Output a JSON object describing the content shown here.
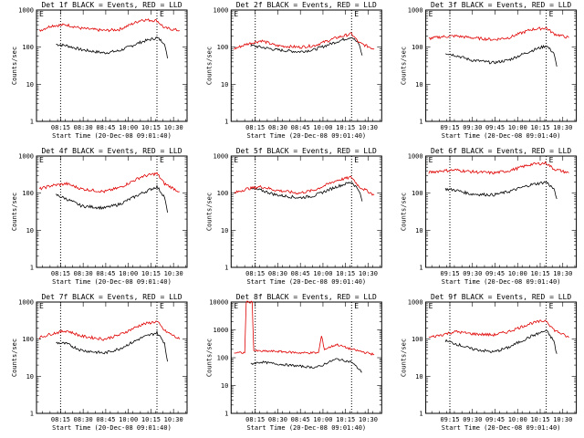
{
  "chart_data": {
    "type": "line",
    "panels": [
      {
        "title": "Det 1f BLACK = Events, RED = LLD",
        "xticks": [
          "08:15",
          "08:30",
          "08:45",
          "10:00",
          "10:15",
          "10:30"
        ],
        "xlabel": "Start Time (20-Dec-08 09:01:40)",
        "ylabel": "Counts/sec",
        "yticks": [
          "1",
          "10",
          "100",
          "1000"
        ],
        "ylim": [
          1,
          1000
        ],
        "log_y": true,
        "markers": [
          "E",
          "E"
        ],
        "series": [
          {
            "color": "#000000",
            "x": [
              0.13,
              0.2,
              0.3,
              0.45,
              0.55,
              0.7,
              0.8,
              0.85,
              0.87
            ],
            "y": [
              120,
              110,
              85,
              70,
              80,
              140,
              180,
              130,
              50
            ]
          },
          {
            "color": "#e00000",
            "x": [
              0.02,
              0.1,
              0.2,
              0.3,
              0.45,
              0.55,
              0.7,
              0.8,
              0.85,
              0.95
            ],
            "y": [
              280,
              380,
              400,
              320,
              280,
              300,
              550,
              520,
              330,
              280
            ]
          }
        ]
      },
      {
        "title": "Det 2f BLACK = Events, RED = LLD",
        "xticks": [
          "08:15",
          "08:30",
          "08:45",
          "10:00",
          "10:15",
          "10:30"
        ],
        "xlabel": "Start Time (20-Dec-08 09:01:40)",
        "ylabel": "Counts/sec",
        "yticks": [
          "1",
          "10",
          "100",
          "1000"
        ],
        "ylim": [
          1,
          1000
        ],
        "log_y": true,
        "markers": [
          "E",
          "E"
        ],
        "series": [
          {
            "color": "#000000",
            "x": [
              0.13,
              0.2,
              0.3,
              0.45,
              0.55,
              0.7,
              0.8,
              0.85,
              0.87
            ],
            "y": [
              110,
              100,
              85,
              75,
              85,
              140,
              190,
              120,
              60
            ]
          },
          {
            "color": "#e00000",
            "x": [
              0.02,
              0.1,
              0.2,
              0.3,
              0.45,
              0.55,
              0.7,
              0.8,
              0.85,
              0.95
            ],
            "y": [
              90,
              120,
              150,
              110,
              100,
              110,
              180,
              230,
              130,
              90
            ]
          }
        ]
      },
      {
        "title": "Det 3f BLACK = Events, RED = LLD",
        "xticks": [
          "09:15",
          "09:30",
          "09:45",
          "10:00",
          "10:15",
          "10:30"
        ],
        "xlabel": "Start Time (20-Dec-08 09:01:40)",
        "ylabel": "Counts/sec",
        "yticks": [
          "1",
          "10",
          "100",
          "1000"
        ],
        "ylim": [
          1,
          1000
        ],
        "log_y": true,
        "markers": [
          "E",
          "E"
        ],
        "series": [
          {
            "color": "#000000",
            "x": [
              0.13,
              0.2,
              0.3,
              0.45,
              0.55,
              0.7,
              0.8,
              0.85,
              0.87
            ],
            "y": [
              70,
              60,
              45,
              38,
              45,
              80,
              110,
              70,
              30
            ]
          },
          {
            "color": "#e00000",
            "x": [
              0.02,
              0.1,
              0.2,
              0.3,
              0.45,
              0.55,
              0.7,
              0.8,
              0.85,
              0.95
            ],
            "y": [
              170,
              190,
              200,
              180,
              160,
              180,
              300,
              330,
              230,
              180
            ]
          }
        ]
      },
      {
        "title": "Det 4f BLACK = Events, RED = LLD",
        "xticks": [
          "08:15",
          "08:30",
          "08:45",
          "10:00",
          "10:15",
          "10:30"
        ],
        "xlabel": "Start Time (20-Dec-08 09:01:40)",
        "ylabel": "Counts/sec",
        "yticks": [
          "1",
          "10",
          "100",
          "1000"
        ],
        "ylim": [
          1,
          1000
        ],
        "log_y": true,
        "markers": [
          "E",
          "E"
        ],
        "series": [
          {
            "color": "#000000",
            "x": [
              0.13,
              0.2,
              0.3,
              0.45,
              0.55,
              0.7,
              0.8,
              0.85,
              0.87
            ],
            "y": [
              90,
              70,
              45,
              40,
              50,
              100,
              150,
              80,
              30
            ]
          },
          {
            "color": "#e00000",
            "x": [
              0.02,
              0.1,
              0.2,
              0.3,
              0.45,
              0.55,
              0.7,
              0.8,
              0.85,
              0.95
            ],
            "y": [
              130,
              160,
              180,
              130,
              110,
              140,
              280,
              340,
              180,
              110
            ]
          }
        ]
      },
      {
        "title": "Det 5f BLACK = Events, RED = LLD",
        "xticks": [
          "08:15",
          "08:30",
          "08:45",
          "10:00",
          "10:15",
          "10:30"
        ],
        "xlabel": "Start Time (20-Dec-08 09:01:40)",
        "ylabel": "Counts/sec",
        "yticks": [
          "1",
          "10",
          "100",
          "1000"
        ],
        "ylim": [
          1,
          1000
        ],
        "log_y": true,
        "markers": [
          "E",
          "E"
        ],
        "series": [
          {
            "color": "#000000",
            "x": [
              0.13,
              0.2,
              0.3,
              0.45,
              0.55,
              0.7,
              0.8,
              0.85,
              0.87
            ],
            "y": [
              130,
              120,
              90,
              75,
              85,
              150,
              200,
              120,
              60
            ]
          },
          {
            "color": "#e00000",
            "x": [
              0.02,
              0.1,
              0.2,
              0.3,
              0.45,
              0.55,
              0.7,
              0.8,
              0.85,
              0.95
            ],
            "y": [
              100,
              130,
              150,
              120,
              100,
              120,
              220,
              270,
              150,
              90
            ]
          }
        ]
      },
      {
        "title": "Det 6f BLACK = Events, RED = LLD",
        "xticks": [
          "09:15",
          "09:30",
          "09:45",
          "10:00",
          "10:15",
          "10:30"
        ],
        "xlabel": "Start Time (20-Dec-08 09:01:40)",
        "ylabel": "Counts/sec",
        "yticks": [
          "1",
          "10",
          "100",
          "1000"
        ],
        "ylim": [
          1,
          1000
        ],
        "log_y": true,
        "markers": [
          "E",
          "E"
        ],
        "series": [
          {
            "color": "#000000",
            "x": [
              0.13,
              0.2,
              0.3,
              0.45,
              0.55,
              0.7,
              0.8,
              0.85,
              0.87
            ],
            "y": [
              130,
              120,
              95,
              90,
              110,
              170,
              200,
              130,
              70
            ]
          },
          {
            "color": "#e00000",
            "x": [
              0.02,
              0.1,
              0.2,
              0.3,
              0.45,
              0.55,
              0.7,
              0.8,
              0.85,
              0.95
            ],
            "y": [
              360,
              400,
              420,
              380,
              350,
              400,
              600,
              650,
              450,
              350
            ]
          }
        ]
      },
      {
        "title": "Det 7f BLACK = Events, RED = LLD",
        "xticks": [
          "08:15",
          "08:30",
          "08:45",
          "10:00",
          "10:15",
          "10:30"
        ],
        "xlabel": "Start Time (20-Dec-08 09:01:40)",
        "ylabel": "Counts/sec",
        "yticks": [
          "1",
          "10",
          "100",
          "1000"
        ],
        "ylim": [
          1,
          1000
        ],
        "log_y": true,
        "markers": [
          "E",
          "E"
        ],
        "series": [
          {
            "color": "#000000",
            "x": [
              0.13,
              0.2,
              0.3,
              0.45,
              0.55,
              0.7,
              0.8,
              0.85,
              0.87
            ],
            "y": [
              80,
              75,
              50,
              42,
              55,
              110,
              150,
              80,
              25
            ]
          },
          {
            "color": "#e00000",
            "x": [
              0.02,
              0.1,
              0.2,
              0.3,
              0.45,
              0.55,
              0.7,
              0.8,
              0.85,
              0.95
            ],
            "y": [
              110,
              140,
              170,
              120,
              100,
              130,
              250,
              300,
              170,
              100
            ]
          }
        ]
      },
      {
        "title": "Det 8f BLACK = Events, RED = LLD",
        "xticks": [
          "08:15",
          "08:30",
          "08:45",
          "10:00",
          "10:15",
          "10:30"
        ],
        "xlabel": "Start Time (20-Dec-08 09:01:40)",
        "ylabel": "Counts/sec",
        "yticks": [
          "1",
          "10",
          "100",
          "1000",
          "10000"
        ],
        "ylim": [
          1,
          10000
        ],
        "log_y": true,
        "markers": [
          "E",
          "E"
        ],
        "series": [
          {
            "color": "#000000",
            "x": [
              0.13,
              0.2,
              0.3,
              0.45,
              0.55,
              0.6,
              0.62,
              0.7,
              0.8,
              0.87
            ],
            "y": [
              60,
              70,
              60,
              50,
              45,
              50,
              60,
              90,
              70,
              30
            ]
          },
          {
            "color": "#e00000",
            "x": [
              0.02,
              0.09,
              0.1,
              0.14,
              0.15,
              0.2,
              0.3,
              0.45,
              0.58,
              0.6,
              0.62,
              0.7,
              0.8,
              0.9,
              0.95
            ],
            "y": [
              150,
              150,
              10000,
              10000,
              180,
              170,
              170,
              150,
              150,
              600,
              200,
              300,
              200,
              150,
              130
            ]
          }
        ]
      },
      {
        "title": "Det 9f BLACK = Events, RED = LLD",
        "xticks": [
          "09:15",
          "09:30",
          "09:45",
          "10:00",
          "10:15",
          "10:30"
        ],
        "xlabel": "Start Time (20-Dec-08 09:01:40)",
        "ylabel": "Counts/sec",
        "yticks": [
          "1",
          "10",
          "100",
          "1000"
        ],
        "ylim": [
          1,
          1000
        ],
        "log_y": true,
        "markers": [
          "E",
          "E"
        ],
        "series": [
          {
            "color": "#000000",
            "x": [
              0.13,
              0.2,
              0.3,
              0.45,
              0.55,
              0.7,
              0.8,
              0.85,
              0.87
            ],
            "y": [
              90,
              75,
              55,
              45,
              60,
              120,
              170,
              90,
              40
            ]
          },
          {
            "color": "#e00000",
            "x": [
              0.02,
              0.1,
              0.2,
              0.3,
              0.45,
              0.55,
              0.7,
              0.8,
              0.85,
              0.95
            ],
            "y": [
              110,
              130,
              160,
              140,
              130,
              160,
              270,
              320,
              180,
              110
            ]
          }
        ]
      }
    ]
  }
}
